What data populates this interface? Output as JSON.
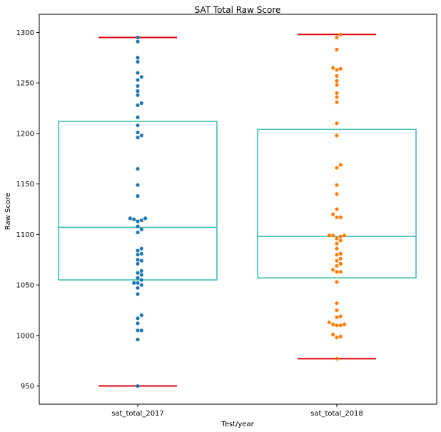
{
  "chart_data": {
    "type": "box",
    "title": "SAT Total Raw Score",
    "xlabel": "Test/year",
    "ylabel": "Raw Score",
    "ylim": [
      932,
      1318
    ],
    "yticks": [
      950,
      1000,
      1050,
      1100,
      1150,
      1200,
      1250,
      1300
    ],
    "categories": [
      "sat_total_2017",
      "sat_total_2018"
    ],
    "grid": false,
    "colors": {
      "box": "#3fbfb0",
      "whisker": "#e0000b",
      "points_2017": "#1f77b4",
      "points_2018": "#ff7f0e"
    },
    "series": [
      {
        "name": "sat_total_2017",
        "q1": 1055,
        "median": 1107,
        "q3": 1212,
        "whisker_low": 950,
        "whisker_high": 1295,
        "points": [
          950,
          996,
          1005,
          1005,
          1012,
          1017,
          1020,
          1041,
          1047,
          1050,
          1052,
          1052,
          1055,
          1057,
          1060,
          1062,
          1064,
          1071,
          1074,
          1075,
          1080,
          1081,
          1084,
          1086,
          1102,
          1105,
          1108,
          1113,
          1114,
          1115,
          1116,
          1116,
          1138,
          1149,
          1165,
          1196,
          1198,
          1201,
          1208,
          1216,
          1228,
          1230,
          1238,
          1242,
          1247,
          1253,
          1256,
          1260,
          1271,
          1275,
          1291,
          1295
        ]
      },
      {
        "name": "sat_total_2018",
        "q1": 1057,
        "median": 1098,
        "q3": 1204,
        "whisker_low": 977,
        "whisker_high": 1298,
        "points": [
          977,
          998,
          999,
          1001,
          1010,
          1010,
          1011,
          1011,
          1013,
          1018,
          1019,
          1025,
          1032,
          1053,
          1063,
          1063,
          1065,
          1069,
          1071,
          1074,
          1076,
          1080,
          1081,
          1086,
          1091,
          1094,
          1096,
          1098,
          1099,
          1099,
          1099,
          1117,
          1117,
          1120,
          1125,
          1140,
          1149,
          1166,
          1169,
          1198,
          1210,
          1231,
          1236,
          1240,
          1248,
          1252,
          1257,
          1263,
          1264,
          1265,
          1283,
          1295,
          1298
        ]
      }
    ]
  }
}
